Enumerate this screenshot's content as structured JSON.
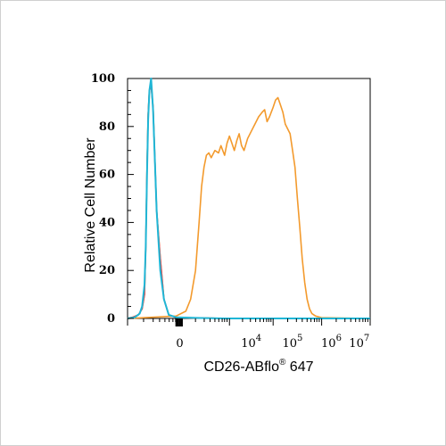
{
  "chart_data": {
    "type": "line",
    "title": "",
    "xlabel": {
      "text": "CD26-ABflo",
      "sup": "®",
      "rest": " 647"
    },
    "ylabel": "Relative Cell Number",
    "ylim": [
      0,
      100
    ],
    "yticks": [
      0,
      20,
      40,
      60,
      80,
      100
    ],
    "xscale": "log",
    "xticks": [
      {
        "label": "0",
        "exp": ""
      },
      {
        "label": "10",
        "exp": "4"
      },
      {
        "label": "10",
        "exp": "5"
      },
      {
        "label": "10",
        "exp": "6"
      },
      {
        "label": "10",
        "exp": "7"
      }
    ],
    "grid": false,
    "legend": "none",
    "series": [
      {
        "color": "#f39a2d",
        "points": [
          [
            0,
            0
          ],
          [
            0.02,
            0.5
          ],
          [
            0.045,
            1.5
          ],
          [
            0.06,
            4
          ],
          [
            0.07,
            10
          ],
          [
            0.075,
            30
          ],
          [
            0.08,
            62
          ],
          [
            0.085,
            85
          ],
          [
            0.09,
            95
          ],
          [
            0.097,
            98
          ],
          [
            0.105,
            88
          ],
          [
            0.12,
            45
          ],
          [
            0.135,
            25
          ],
          [
            0.15,
            8
          ],
          [
            0.17,
            1.5
          ],
          [
            0.2,
            0.5
          ],
          [
            0.25,
            0.3
          ],
          [
            0.3,
            0.2
          ],
          [
            0.35,
            0.1
          ],
          [
            0.4,
            0
          ],
          [
            1.0,
            0
          ]
        ]
      },
      {
        "color": "#e0454f",
        "points": [
          [
            0,
            0
          ],
          [
            0.02,
            0.5
          ],
          [
            0.045,
            1.5
          ],
          [
            0.06,
            4
          ],
          [
            0.07,
            10
          ],
          [
            0.075,
            30
          ],
          [
            0.08,
            62
          ],
          [
            0.085,
            85
          ],
          [
            0.09,
            95
          ],
          [
            0.097,
            97
          ],
          [
            0.105,
            88
          ],
          [
            0.12,
            45
          ],
          [
            0.135,
            25
          ],
          [
            0.15,
            8
          ],
          [
            0.17,
            1.5
          ],
          [
            0.2,
            0.5
          ],
          [
            0.25,
            0.3
          ],
          [
            0.3,
            0.2
          ],
          [
            0.35,
            0.1
          ],
          [
            0.4,
            0
          ],
          [
            1.0,
            0
          ]
        ]
      },
      {
        "color": "#f39a2d",
        "points": [
          [
            0,
            0
          ],
          [
            0.1,
            0.5
          ],
          [
            0.2,
            1
          ],
          [
            0.24,
            3
          ],
          [
            0.26,
            8
          ],
          [
            0.28,
            20
          ],
          [
            0.295,
            40
          ],
          [
            0.305,
            55
          ],
          [
            0.315,
            63
          ],
          [
            0.325,
            68
          ],
          [
            0.335,
            69
          ],
          [
            0.345,
            67
          ],
          [
            0.36,
            70
          ],
          [
            0.375,
            69
          ],
          [
            0.385,
            72
          ],
          [
            0.4,
            68
          ],
          [
            0.41,
            73
          ],
          [
            0.42,
            76
          ],
          [
            0.43,
            73
          ],
          [
            0.44,
            70
          ],
          [
            0.45,
            74
          ],
          [
            0.46,
            77
          ],
          [
            0.47,
            72
          ],
          [
            0.48,
            70
          ],
          [
            0.495,
            75
          ],
          [
            0.51,
            78
          ],
          [
            0.525,
            81
          ],
          [
            0.54,
            84
          ],
          [
            0.555,
            86
          ],
          [
            0.565,
            87
          ],
          [
            0.575,
            82
          ],
          [
            0.585,
            84
          ],
          [
            0.6,
            88
          ],
          [
            0.61,
            91
          ],
          [
            0.62,
            92
          ],
          [
            0.63,
            89
          ],
          [
            0.64,
            86
          ],
          [
            0.65,
            81
          ],
          [
            0.66,
            79
          ],
          [
            0.67,
            77
          ],
          [
            0.68,
            70
          ],
          [
            0.69,
            63
          ],
          [
            0.7,
            50
          ],
          [
            0.71,
            38
          ],
          [
            0.72,
            25
          ],
          [
            0.73,
            15
          ],
          [
            0.74,
            8
          ],
          [
            0.75,
            4
          ],
          [
            0.76,
            2
          ],
          [
            0.775,
            1
          ],
          [
            0.8,
            0.3
          ],
          [
            1.0,
            0
          ]
        ]
      },
      {
        "color": "#1fb6d6",
        "points": [
          [
            0,
            0
          ],
          [
            0.03,
            0.5
          ],
          [
            0.05,
            2
          ],
          [
            0.06,
            5
          ],
          [
            0.07,
            14
          ],
          [
            0.075,
            30
          ],
          [
            0.08,
            60
          ],
          [
            0.085,
            83
          ],
          [
            0.09,
            95
          ],
          [
            0.097,
            100
          ],
          [
            0.105,
            87
          ],
          [
            0.12,
            45
          ],
          [
            0.135,
            20
          ],
          [
            0.15,
            8
          ],
          [
            0.17,
            1.5
          ],
          [
            0.2,
            0.5
          ],
          [
            0.3,
            0.2
          ],
          [
            0.4,
            0
          ],
          [
            1.0,
            0
          ]
        ]
      }
    ]
  }
}
